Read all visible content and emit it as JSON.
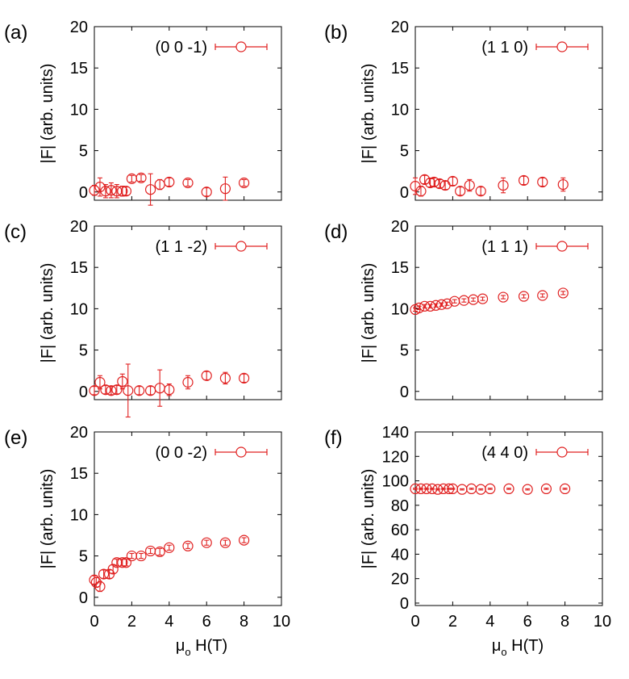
{
  "figure": {
    "x_title_base": "μ",
    "x_title_sub": "o",
    "x_title_rest": " H(T)"
  },
  "chart_data": [
    {
      "type": "scatter",
      "panel_label": "(a)",
      "legend": "(0 0 -1)",
      "ylabel": "|F| (arb. units)",
      "xlabel": "",
      "xlim": [
        0,
        10
      ],
      "ylim": [
        -1,
        20
      ],
      "yticks": [
        0,
        5,
        10,
        15,
        20
      ],
      "xticks": [
        0,
        2,
        4,
        6,
        8,
        10
      ],
      "show_x_ticklabels": false,
      "color": "#e02020",
      "points": [
        {
          "x": 0.0,
          "y": 0.2,
          "err": 0.6
        },
        {
          "x": 0.3,
          "y": 0.6,
          "err": 1.1
        },
        {
          "x": 0.6,
          "y": 0.1,
          "err": 0.8
        },
        {
          "x": 0.9,
          "y": 0.2,
          "err": 0.9
        },
        {
          "x": 1.2,
          "y": 0.1,
          "err": 0.8
        },
        {
          "x": 1.5,
          "y": 0.1,
          "err": 0.6
        },
        {
          "x": 1.7,
          "y": 0.1,
          "err": 0.5
        },
        {
          "x": 2.0,
          "y": 1.6,
          "err": 0.4
        },
        {
          "x": 2.5,
          "y": 1.7,
          "err": 0.4
        },
        {
          "x": 3.0,
          "y": 0.3,
          "err": 1.9
        },
        {
          "x": 3.5,
          "y": 0.9,
          "err": 0.6
        },
        {
          "x": 4.0,
          "y": 1.2,
          "err": 0.5
        },
        {
          "x": 5.0,
          "y": 1.1,
          "err": 0.4
        },
        {
          "x": 6.0,
          "y": 0.0,
          "err": 0.5
        },
        {
          "x": 7.0,
          "y": 0.4,
          "err": 1.4
        },
        {
          "x": 8.0,
          "y": 1.1,
          "err": 0.4
        }
      ]
    },
    {
      "type": "scatter",
      "panel_label": "(b)",
      "legend": "(1 1 0)",
      "ylabel": "|F| (arb. units)",
      "xlabel": "",
      "xlim": [
        0,
        10
      ],
      "ylim": [
        -1,
        20
      ],
      "yticks": [
        0,
        5,
        10,
        15,
        20
      ],
      "xticks": [
        0,
        2,
        4,
        6,
        8,
        10
      ],
      "show_x_ticklabels": false,
      "color": "#e02020",
      "points": [
        {
          "x": 0.0,
          "y": 0.7,
          "err": 1.0
        },
        {
          "x": 0.3,
          "y": 0.1,
          "err": 0.6
        },
        {
          "x": 0.5,
          "y": 1.5,
          "err": 0.5
        },
        {
          "x": 0.8,
          "y": 1.1,
          "err": 0.5
        },
        {
          "x": 1.0,
          "y": 1.2,
          "err": 0.5
        },
        {
          "x": 1.3,
          "y": 1.0,
          "err": 0.5
        },
        {
          "x": 1.6,
          "y": 0.8,
          "err": 0.5
        },
        {
          "x": 2.0,
          "y": 1.3,
          "err": 0.5
        },
        {
          "x": 2.4,
          "y": 0.1,
          "err": 0.5
        },
        {
          "x": 2.9,
          "y": 0.8,
          "err": 0.7
        },
        {
          "x": 3.5,
          "y": 0.1,
          "err": 0.5
        },
        {
          "x": 4.7,
          "y": 0.8,
          "err": 0.9
        },
        {
          "x": 5.8,
          "y": 1.4,
          "err": 0.5
        },
        {
          "x": 6.8,
          "y": 1.2,
          "err": 0.5
        },
        {
          "x": 7.9,
          "y": 0.9,
          "err": 0.8
        }
      ]
    },
    {
      "type": "scatter",
      "panel_label": "(c)",
      "legend": "(1 1 -2)",
      "ylabel": "|F| (arb. units)",
      "xlabel": "",
      "xlim": [
        0,
        10
      ],
      "ylim": [
        -1,
        20
      ],
      "yticks": [
        0,
        5,
        10,
        15,
        20
      ],
      "xticks": [
        0,
        2,
        4,
        6,
        8,
        10
      ],
      "show_x_ticklabels": false,
      "color": "#e02020",
      "points": [
        {
          "x": 0.0,
          "y": 0.1,
          "err": 0.5
        },
        {
          "x": 0.3,
          "y": 1.1,
          "err": 0.8
        },
        {
          "x": 0.6,
          "y": 0.2,
          "err": 0.5
        },
        {
          "x": 0.9,
          "y": 0.1,
          "err": 0.5
        },
        {
          "x": 1.2,
          "y": 0.2,
          "err": 0.5
        },
        {
          "x": 1.5,
          "y": 1.2,
          "err": 0.9
        },
        {
          "x": 1.8,
          "y": 0.1,
          "err": 3.2
        },
        {
          "x": 2.4,
          "y": 0.1,
          "err": 0.5
        },
        {
          "x": 3.0,
          "y": 0.1,
          "err": 0.5
        },
        {
          "x": 3.5,
          "y": 0.4,
          "err": 2.2
        },
        {
          "x": 4.0,
          "y": 0.2,
          "err": 0.7
        },
        {
          "x": 5.0,
          "y": 1.1,
          "err": 0.8
        },
        {
          "x": 6.0,
          "y": 1.9,
          "err": 0.5
        },
        {
          "x": 7.0,
          "y": 1.6,
          "err": 0.7
        },
        {
          "x": 8.0,
          "y": 1.6,
          "err": 0.5
        }
      ]
    },
    {
      "type": "scatter",
      "panel_label": "(d)",
      "legend": "(1 1 1)",
      "ylabel": "|F| (arb. units)",
      "xlabel": "",
      "xlim": [
        0,
        10
      ],
      "ylim": [
        -1,
        20
      ],
      "yticks": [
        0,
        5,
        10,
        15,
        20
      ],
      "xticks": [
        0,
        2,
        4,
        6,
        8,
        10
      ],
      "show_x_ticklabels": false,
      "color": "#e02020",
      "points": [
        {
          "x": 0.0,
          "y": 9.9,
          "err": 0.2
        },
        {
          "x": 0.2,
          "y": 10.1,
          "err": 0.2
        },
        {
          "x": 0.5,
          "y": 10.3,
          "err": 0.2
        },
        {
          "x": 0.8,
          "y": 10.3,
          "err": 0.2
        },
        {
          "x": 1.1,
          "y": 10.4,
          "err": 0.2
        },
        {
          "x": 1.4,
          "y": 10.5,
          "err": 0.2
        },
        {
          "x": 1.7,
          "y": 10.6,
          "err": 0.2
        },
        {
          "x": 2.1,
          "y": 10.9,
          "err": 0.2
        },
        {
          "x": 2.6,
          "y": 11.0,
          "err": 0.2
        },
        {
          "x": 3.1,
          "y": 11.1,
          "err": 0.2
        },
        {
          "x": 3.6,
          "y": 11.2,
          "err": 0.2
        },
        {
          "x": 4.7,
          "y": 11.4,
          "err": 0.2
        },
        {
          "x": 5.8,
          "y": 11.5,
          "err": 0.2
        },
        {
          "x": 6.8,
          "y": 11.6,
          "err": 0.2
        },
        {
          "x": 7.9,
          "y": 11.9,
          "err": 0.2
        }
      ]
    },
    {
      "type": "scatter",
      "panel_label": "(e)",
      "legend": "(0 0 -2)",
      "ylabel": "|F| (arb. units)",
      "xlabel": "μo H(T)",
      "xlim": [
        0,
        10
      ],
      "ylim": [
        -1,
        20
      ],
      "yticks": [
        0,
        5,
        10,
        15,
        20
      ],
      "xticks": [
        0,
        2,
        4,
        6,
        8,
        10
      ],
      "show_x_ticklabels": true,
      "color": "#e02020",
      "points": [
        {
          "x": 0.0,
          "y": 2.1,
          "err": 0.5
        },
        {
          "x": 0.1,
          "y": 1.8,
          "err": 0.6
        },
        {
          "x": 0.3,
          "y": 1.3,
          "err": 0.6
        },
        {
          "x": 0.5,
          "y": 2.8,
          "err": 0.5
        },
        {
          "x": 0.8,
          "y": 2.8,
          "err": 0.5
        },
        {
          "x": 1.0,
          "y": 3.4,
          "err": 0.5
        },
        {
          "x": 1.2,
          "y": 4.2,
          "err": 0.4
        },
        {
          "x": 1.5,
          "y": 4.2,
          "err": 0.4
        },
        {
          "x": 1.7,
          "y": 4.2,
          "err": 0.4
        },
        {
          "x": 2.0,
          "y": 5.0,
          "err": 0.3
        },
        {
          "x": 2.5,
          "y": 5.0,
          "err": 0.3
        },
        {
          "x": 3.0,
          "y": 5.6,
          "err": 0.3
        },
        {
          "x": 3.5,
          "y": 5.5,
          "err": 0.4
        },
        {
          "x": 4.0,
          "y": 6.0,
          "err": 0.3
        },
        {
          "x": 5.0,
          "y": 6.2,
          "err": 0.3
        },
        {
          "x": 6.0,
          "y": 6.6,
          "err": 0.3
        },
        {
          "x": 7.0,
          "y": 6.6,
          "err": 0.3
        },
        {
          "x": 8.0,
          "y": 6.9,
          "err": 0.3
        }
      ]
    },
    {
      "type": "scatter",
      "panel_label": "(f)",
      "legend": "(4 4 0)",
      "ylabel": "|F| (arb. units)",
      "xlabel": "μo H(T)",
      "xlim": [
        0,
        10
      ],
      "ylim": [
        -2,
        140
      ],
      "yticks": [
        0,
        20,
        40,
        60,
        80,
        100,
        120,
        140
      ],
      "xticks": [
        0,
        2,
        4,
        6,
        8,
        10
      ],
      "show_x_ticklabels": true,
      "color": "#e02020",
      "points": [
        {
          "x": 0.0,
          "y": 93.5,
          "err": 0.5
        },
        {
          "x": 0.3,
          "y": 93.5,
          "err": 0.5
        },
        {
          "x": 0.6,
          "y": 93.5,
          "err": 0.5
        },
        {
          "x": 0.9,
          "y": 93.5,
          "err": 0.5
        },
        {
          "x": 1.2,
          "y": 93.0,
          "err": 0.5
        },
        {
          "x": 1.5,
          "y": 93.5,
          "err": 0.5
        },
        {
          "x": 1.8,
          "y": 93.5,
          "err": 0.5
        },
        {
          "x": 2.0,
          "y": 93.5,
          "err": 0.5
        },
        {
          "x": 2.5,
          "y": 93.0,
          "err": 0.5
        },
        {
          "x": 3.0,
          "y": 93.5,
          "err": 0.5
        },
        {
          "x": 3.5,
          "y": 93.0,
          "err": 0.5
        },
        {
          "x": 4.0,
          "y": 93.5,
          "err": 0.5
        },
        {
          "x": 5.0,
          "y": 93.5,
          "err": 0.5
        },
        {
          "x": 6.0,
          "y": 93.0,
          "err": 0.5
        },
        {
          "x": 7.0,
          "y": 93.5,
          "err": 0.5
        },
        {
          "x": 8.0,
          "y": 93.5,
          "err": 0.5
        }
      ]
    }
  ]
}
